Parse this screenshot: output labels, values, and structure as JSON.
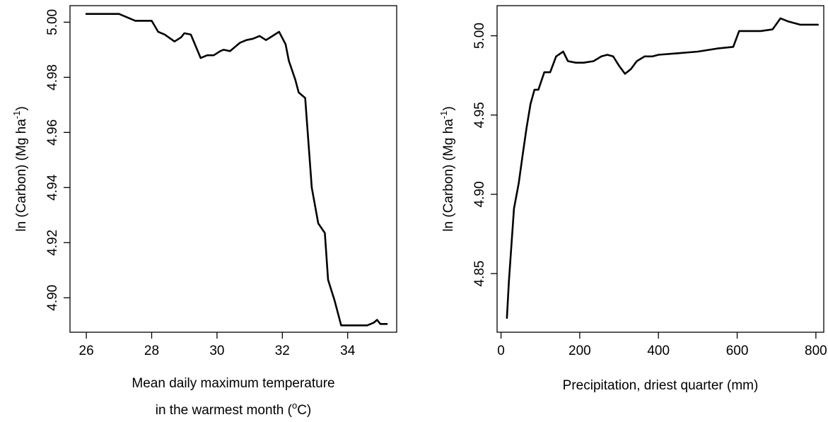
{
  "chart_data": [
    {
      "type": "line",
      "xlabel_line1": "Mean daily maximum temperature",
      "xlabel_line2_pre": "in the warmest month (",
      "xlabel_line2_sup": "o",
      "xlabel_line2_post": "C)",
      "ylabel_pre": "ln (Carbon) (Mg ha",
      "ylabel_sup": "-1",
      "ylabel_post": ")",
      "xlim": [
        25.5,
        35.5
      ],
      "ylim": [
        4.8875,
        5.006
      ],
      "xticks": [
        26,
        28,
        30,
        32,
        34
      ],
      "xtick_labels": [
        "26",
        "28",
        "30",
        "32",
        "34"
      ],
      "yticks": [
        4.9,
        4.92,
        4.94,
        4.96,
        4.98,
        5.0
      ],
      "ytick_labels": [
        "4.90",
        "4.92",
        "4.94",
        "4.96",
        "4.98",
        "5.00"
      ],
      "grid": false,
      "series": [
        {
          "x": [
            26.0,
            27.0,
            27.2,
            27.5,
            28.0,
            28.2,
            28.4,
            28.7,
            28.9,
            29.0,
            29.2,
            29.5,
            29.7,
            29.9,
            30.1,
            30.2,
            30.4,
            30.5,
            30.7,
            30.9,
            31.1,
            31.3,
            31.5,
            31.7,
            31.9,
            32.1,
            32.2,
            32.4,
            32.5,
            32.7,
            32.9,
            33.1,
            33.3,
            33.4,
            33.6,
            33.8,
            34.0,
            34.2,
            34.4,
            34.6,
            34.8,
            34.9,
            35.0,
            35.2
          ],
          "y": [
            5.003,
            5.003,
            5.002,
            5.0005,
            5.0005,
            4.9965,
            4.9955,
            4.993,
            4.9945,
            4.996,
            4.9955,
            4.987,
            4.988,
            4.988,
            4.9895,
            4.99,
            4.9895,
            4.9905,
            4.9925,
            4.9935,
            4.994,
            4.995,
            4.9935,
            4.995,
            4.9965,
            4.992,
            4.986,
            4.979,
            4.9745,
            4.9725,
            4.94,
            4.927,
            4.9235,
            4.9065,
            4.899,
            4.89,
            4.89,
            4.89,
            4.89,
            4.89,
            4.891,
            4.892,
            4.8905,
            4.8905
          ]
        }
      ]
    },
    {
      "type": "line",
      "xlabel": "Precipitation, driest quarter (mm)",
      "ylabel_pre": "ln (Carbon) (Mg ha",
      "ylabel_sup": "-1",
      "ylabel_post": ")",
      "xlim": [
        -10,
        820
      ],
      "ylim": [
        4.813,
        5.019
      ],
      "xticks": [
        0,
        200,
        400,
        600,
        800
      ],
      "xtick_labels": [
        "0",
        "200",
        "400",
        "600",
        "800"
      ],
      "yticks": [
        4.85,
        4.9,
        4.95,
        5.0
      ],
      "ytick_labels": [
        "4.85",
        "4.90",
        "4.95",
        "5.00"
      ],
      "grid": false,
      "series": [
        {
          "x": [
            15,
            20,
            27,
            33,
            45,
            55,
            65,
            75,
            85,
            95,
            110,
            125,
            140,
            158,
            170,
            190,
            210,
            235,
            255,
            270,
            285,
            300,
            315,
            330,
            345,
            365,
            385,
            400,
            450,
            500,
            550,
            590,
            605,
            660,
            690,
            710,
            730,
            760,
            805
          ],
          "y": [
            4.822,
            4.845,
            4.87,
            4.891,
            4.907,
            4.925,
            4.942,
            4.957,
            4.966,
            4.966,
            4.977,
            4.977,
            4.987,
            4.99,
            4.984,
            4.983,
            4.983,
            4.984,
            4.987,
            4.988,
            4.987,
            4.981,
            4.976,
            4.979,
            4.984,
            4.987,
            4.987,
            4.988,
            4.989,
            4.99,
            4.992,
            4.993,
            5.003,
            5.003,
            5.004,
            5.011,
            5.009,
            5.007,
            5.007
          ]
        }
      ]
    }
  ]
}
